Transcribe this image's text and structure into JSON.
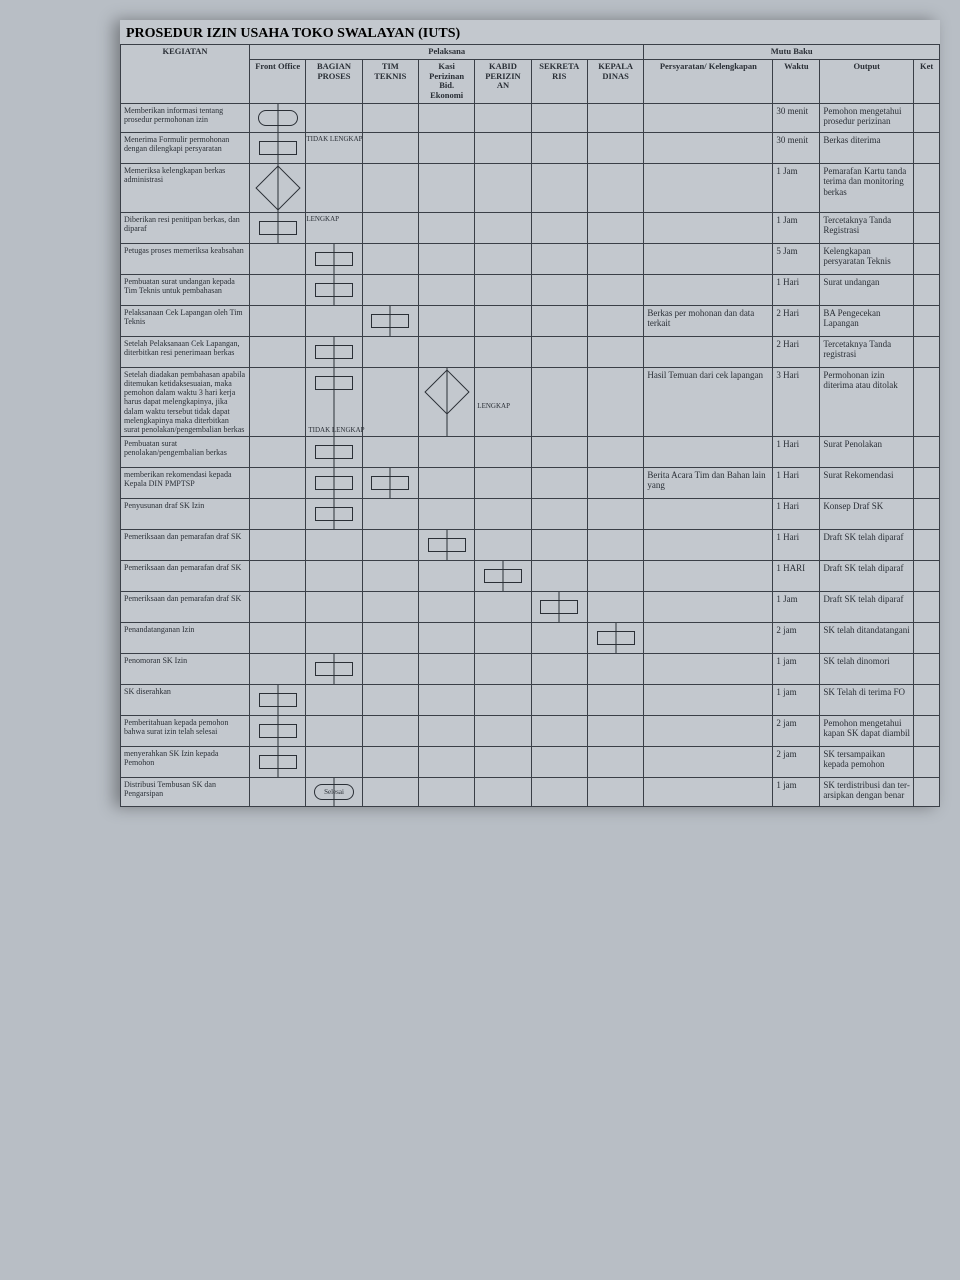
{
  "title": "PROSEDUR IZIN USAHA TOKO SWALAYAN (IUTS)",
  "header": {
    "kegiatan": "KEGIATAN",
    "pelaksana": "Pelaksana",
    "mutu": "Mutu Baku",
    "actors": [
      "Front Office",
      "BAGIAN PROSES",
      "TIM TEKNIS",
      "Kasi Perizinan Bid. Ekonomi",
      "KABID PERIZIN AN",
      "SEKRETA RIS",
      "KEPALA DINAS"
    ],
    "mutu_cols": [
      "Persyaratan/ Kelengkapan",
      "Waktu",
      "Output",
      "Ket"
    ]
  },
  "labels": {
    "tidak_lengkap": "TIDAK LENGKAP",
    "lengkap": "LENGKAP",
    "selesai": "Selesai"
  },
  "rows": [
    {
      "keg": "Memberikan informasi tentang prosedur permohonan izin",
      "pers": "",
      "waktu": "30 menit",
      "out": "Pemohon mengetahui prosedur perizinan"
    },
    {
      "keg": "Menerima Formulir permohonan dengan dilengkapi persyaratan",
      "pers": "",
      "waktu": "30 menit",
      "out": "Berkas diterima"
    },
    {
      "keg": "Memeriksa kelengkapan berkas administrasi",
      "pers": "",
      "waktu": "1 Jam",
      "out": "Pemarafan Kartu tanda terima dan monitoring berkas"
    },
    {
      "keg": "Diberikan resi penitipan berkas, dan diparaf",
      "pers": "",
      "waktu": "1 Jam",
      "out": "Tercetaknya Tanda Registrasi"
    },
    {
      "keg": "Petugas proses memeriksa keabsahan",
      "pers": "",
      "waktu": "5 Jam",
      "out": "Kelengkapan persyaratan Teknis"
    },
    {
      "keg": "Pembuatan surat undangan kepada Tim Teknis untuk pembahasan",
      "pers": "",
      "waktu": "1 Hari",
      "out": "Surat undangan"
    },
    {
      "keg": "Pelaksanaan Cek Lapangan oleh Tim Teknis",
      "pers": "Berkas per mohonan dan data terkait",
      "waktu": "2 Hari",
      "out": "BA Pengecekan Lapangan"
    },
    {
      "keg": "Setelah Pelaksanaan Cek Lapangan, diterbitkan resi penerimaan berkas",
      "pers": "",
      "waktu": "2 Hari",
      "out": "Tercetaknya Tanda registrasi"
    },
    {
      "keg": "Setelah diadakan pembahasan apabila ditemukan ketidaksesuaian, maka pemohon dalam waktu 3 hari kerja harus dapat melengkapinya, jika dalam waktu tersebut tidak dapat melengkapinya maka diterbitkan surat penolakan/pengembalian berkas",
      "pers": "Hasil Temuan dari cek lapangan",
      "waktu": "3 Hari",
      "out": "Permohonan izin diterima atau ditolak"
    },
    {
      "keg": "Pembuatan surat penolakan/pengembalian berkas",
      "pers": "",
      "waktu": "1 Hari",
      "out": "Surat Penolakan"
    },
    {
      "keg": "memberikan rekomendasi kepada Kepala DIN PMPTSP",
      "pers": "Berita Acara Tim dan Bahan lain yang",
      "waktu": "1 Hari",
      "out": "Surat Rekomendasi"
    },
    {
      "keg": "Penyusunan draf SK Izin",
      "pers": "",
      "waktu": "1 Hari",
      "out": "Konsep Draf SK"
    },
    {
      "keg": "Pemeriksaan dan pemarafan draf SK",
      "pers": "",
      "waktu": "1 Hari",
      "out": "Draft SK telah diparaf"
    },
    {
      "keg": "Pemeriksaan dan pemarafan draf SK",
      "pers": "",
      "waktu": "1 HARI",
      "out": "Draft SK telah diparaf"
    },
    {
      "keg": "Pemeriksaan dan pemarafan draf SK",
      "pers": "",
      "waktu": "1 Jam",
      "out": "Draft SK telah diparaf"
    },
    {
      "keg": "Penandatanganan Izin",
      "pers": "",
      "waktu": "2 jam",
      "out": "SK telah ditandatangani"
    },
    {
      "keg": "Penomoran SK Izin",
      "pers": "",
      "waktu": "1 jam",
      "out": "SK telah dinomori"
    },
    {
      "keg": "SK diserahkan",
      "pers": "",
      "waktu": "1 jam",
      "out": "SK Telah di terima FO"
    },
    {
      "keg": "Pemberitahuan kepada pemohon bahwa surat izin telah selesai",
      "pers": "",
      "waktu": "2 jam",
      "out": "Pemohon mengetahui kapan SK dapat diambil"
    },
    {
      "keg": "menyerahkan SK Izin kepada Pemohon",
      "pers": "",
      "waktu": "2 jam",
      "out": "SK tersampaikan kepada pemohon"
    },
    {
      "keg": "Distribusi Tembusan SK dan Pengarsipan",
      "pers": "",
      "waktu": "1 jam",
      "out": "SK terdistribusi dan ter-arsipkan dengan benar"
    }
  ]
}
